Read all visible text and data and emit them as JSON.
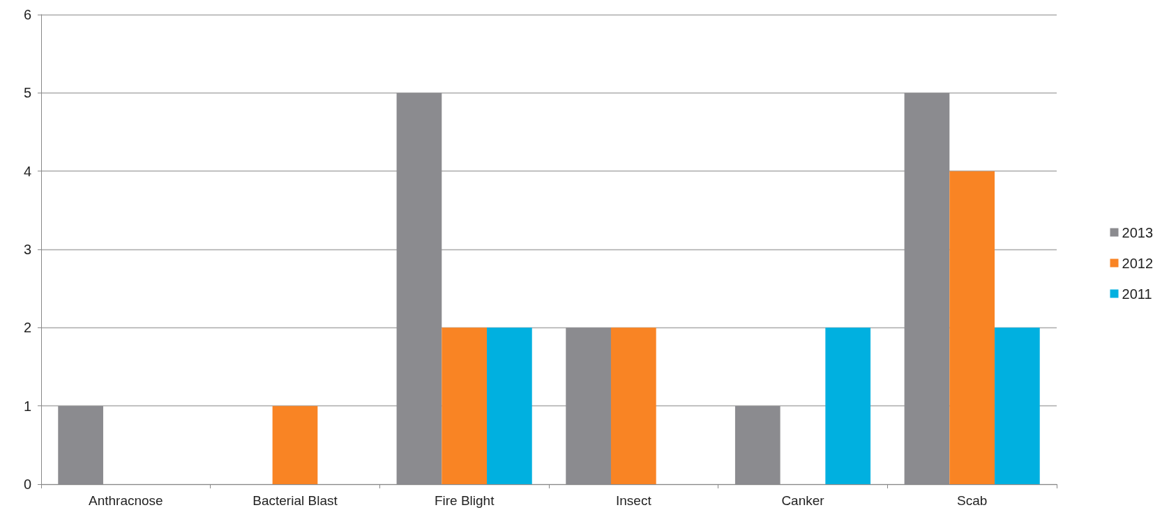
{
  "chart_data": {
    "type": "bar",
    "categories": [
      "Anthracnose",
      "Bacterial Blast",
      "Fire Blight",
      "Insect",
      "Canker",
      "Scab"
    ],
    "series": [
      {
        "name": "2013",
        "color": "#8b8b8f",
        "values": [
          1,
          0,
          5,
          2,
          1,
          5
        ]
      },
      {
        "name": "2012",
        "color": "#f98424",
        "values": [
          0,
          1,
          2,
          2,
          0,
          4
        ]
      },
      {
        "name": "2011",
        "color": "#00b0e0",
        "values": [
          0,
          0,
          2,
          0,
          2,
          2
        ]
      }
    ],
    "ylim": [
      0,
      6
    ],
    "yticks": [
      0,
      1,
      2,
      3,
      4,
      5,
      6
    ],
    "grid": "y",
    "legend": "right"
  }
}
